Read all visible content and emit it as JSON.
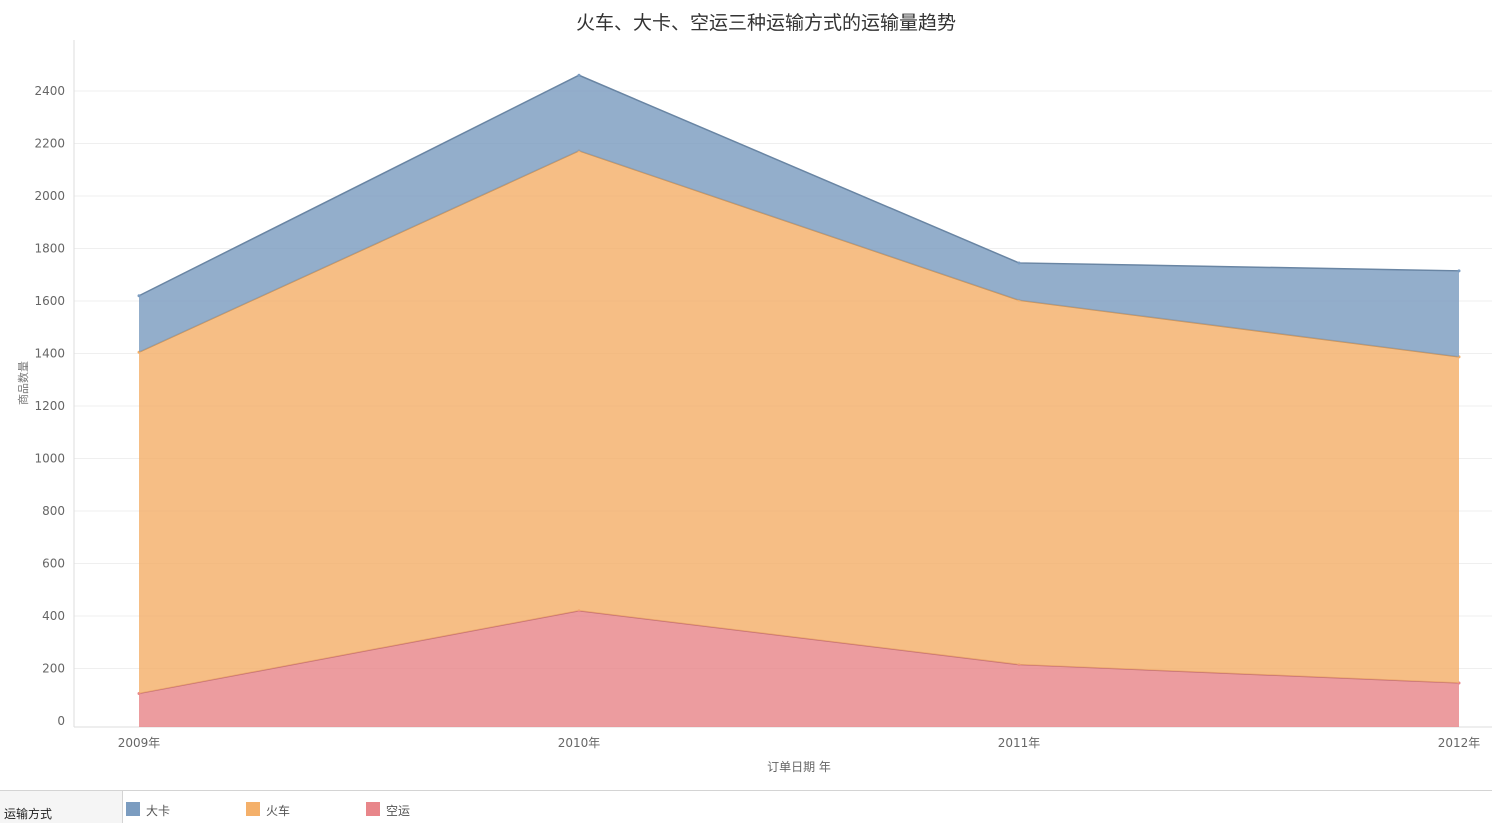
{
  "chart_data": {
    "type": "area",
    "stacked": true,
    "title": "火车、大卡、空运三种运输方式的运输量趋势",
    "xlabel": "订单日期 年",
    "ylabel": "商品数量",
    "categories": [
      "2009年",
      "2010年",
      "2011年",
      "2012年"
    ],
    "ylim": [
      0,
      2500
    ],
    "yticks": [
      0,
      200,
      400,
      600,
      800,
      1000,
      1200,
      1400,
      1600,
      1800,
      2000,
      2200,
      2400
    ],
    "grid": true,
    "legend_position": "bottom",
    "legend_title": "运输方式",
    "series": [
      {
        "name": "空运",
        "color": "#e8868a",
        "values": [
          105,
          420,
          215,
          145
        ]
      },
      {
        "name": "火车",
        "color": "#f4b06a",
        "values": [
          1300,
          1752,
          1388,
          1242
        ]
      },
      {
        "name": "大卡",
        "color": "#7b9cc0",
        "values": [
          215,
          288,
          142,
          328
        ]
      }
    ],
    "legend_order": [
      "大卡",
      "火车",
      "空运"
    ]
  }
}
